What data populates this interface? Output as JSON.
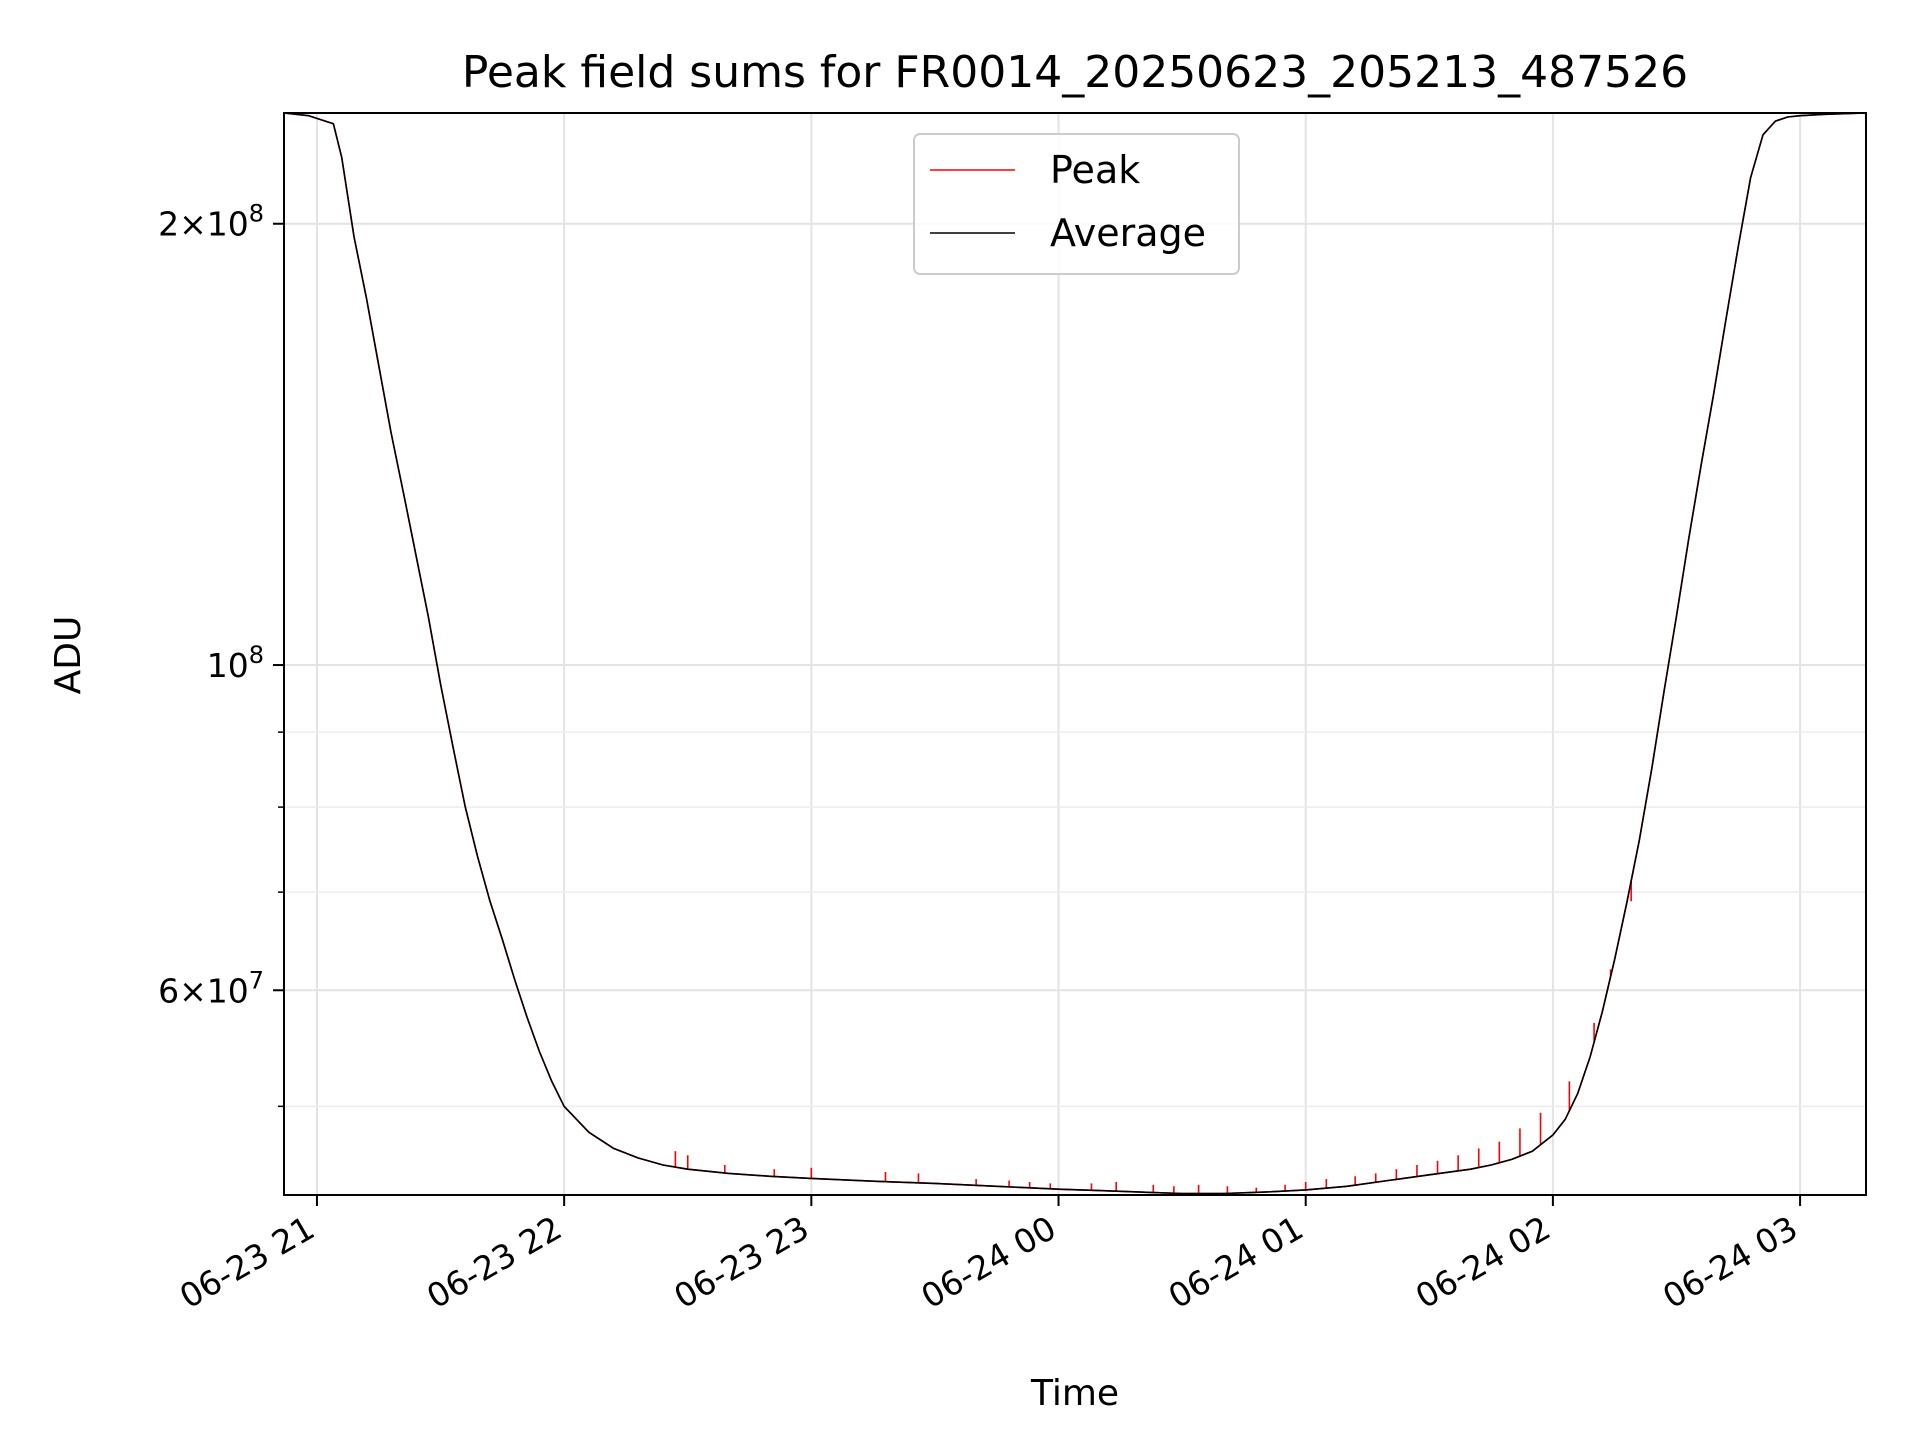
{
  "chart_data": {
    "type": "line",
    "title": "Peak field sums for FR0014_20250623_205213_487526",
    "xlabel": "Time",
    "ylabel": "ADU",
    "yscale": "log",
    "xlim": [
      "2025-06-23T20:52",
      "2025-06-24T03:16"
    ],
    "ylim": [
      43500000,
      238000000
    ],
    "grid": true,
    "legend": {
      "position": "upper-center",
      "entries": [
        "Peak",
        "Average"
      ]
    },
    "x_ticks": [
      {
        "value": "2025-06-23T21:00",
        "label": "06-23 21"
      },
      {
        "value": "2025-06-23T22:00",
        "label": "06-23 22"
      },
      {
        "value": "2025-06-23T23:00",
        "label": "06-23 23"
      },
      {
        "value": "2025-06-24T00:00",
        "label": "06-24 00"
      },
      {
        "value": "2025-06-24T01:00",
        "label": "06-24 01"
      },
      {
        "value": "2025-06-24T02:00",
        "label": "06-24 02"
      },
      {
        "value": "2025-06-24T03:00",
        "label": "06-24 03"
      }
    ],
    "y_major_ticks": [
      {
        "value": 60000000,
        "coef": "6",
        "exp": "7"
      },
      {
        "value": 100000000,
        "coef": "",
        "exp": "8"
      },
      {
        "value": 200000000,
        "coef": "2",
        "exp": "8"
      }
    ],
    "y_minor_ticks": [
      50000000,
      70000000,
      80000000,
      90000000
    ],
    "series": [
      {
        "name": "Average",
        "color": "#000000",
        "x": [
          "2025-06-23T20:52",
          "2025-06-23T20:58",
          "2025-06-23T21:04",
          "2025-06-23T21:06",
          "2025-06-23T21:09",
          "2025-06-23T21:12",
          "2025-06-23T21:15",
          "2025-06-23T21:18",
          "2025-06-23T21:21",
          "2025-06-23T21:24",
          "2025-06-23T21:27",
          "2025-06-23T21:30",
          "2025-06-23T21:33",
          "2025-06-23T21:36",
          "2025-06-23T21:39",
          "2025-06-23T21:42",
          "2025-06-23T21:45",
          "2025-06-23T21:48",
          "2025-06-23T21:51",
          "2025-06-23T21:54",
          "2025-06-23T21:57",
          "2025-06-23T22:00",
          "2025-06-23T22:06",
          "2025-06-23T22:12",
          "2025-06-23T22:18",
          "2025-06-23T22:24",
          "2025-06-23T22:30",
          "2025-06-23T22:40",
          "2025-06-23T22:50",
          "2025-06-23T23:00",
          "2025-06-23T23:15",
          "2025-06-23T23:30",
          "2025-06-23T23:45",
          "2025-06-24T00:00",
          "2025-06-24T00:10",
          "2025-06-24T00:20",
          "2025-06-24T00:30",
          "2025-06-24T00:40",
          "2025-06-24T00:50",
          "2025-06-24T01:00",
          "2025-06-24T01:10",
          "2025-06-24T01:20",
          "2025-06-24T01:30",
          "2025-06-24T01:40",
          "2025-06-24T01:45",
          "2025-06-24T01:50",
          "2025-06-24T01:55",
          "2025-06-24T02:00",
          "2025-06-24T02:03",
          "2025-06-24T02:06",
          "2025-06-24T02:09",
          "2025-06-24T02:12",
          "2025-06-24T02:15",
          "2025-06-24T02:18",
          "2025-06-24T02:21",
          "2025-06-24T02:24",
          "2025-06-24T02:27",
          "2025-06-24T02:30",
          "2025-06-24T02:33",
          "2025-06-24T02:36",
          "2025-06-24T02:39",
          "2025-06-24T02:42",
          "2025-06-24T02:45",
          "2025-06-24T02:48",
          "2025-06-24T02:51",
          "2025-06-24T02:54",
          "2025-06-24T02:57",
          "2025-06-24T03:00",
          "2025-06-24T03:06",
          "2025-06-24T03:16"
        ],
        "y": [
          238000000,
          237000000,
          234000000,
          222000000,
          196000000,
          178000000,
          160000000,
          144000000,
          131000000,
          119000000,
          108000000,
          97000000,
          88000000,
          80000000,
          74000000,
          69000000,
          65000000,
          61000000,
          57500000,
          54500000,
          52000000,
          50000000,
          48000000,
          46800000,
          46100000,
          45600000,
          45300000,
          45000000,
          44800000,
          44650000,
          44450000,
          44300000,
          44100000,
          43900000,
          43800000,
          43700000,
          43600000,
          43600000,
          43700000,
          43850000,
          44100000,
          44500000,
          44900000,
          45300000,
          45600000,
          46000000,
          46600000,
          47800000,
          49000000,
          51000000,
          54000000,
          58000000,
          63000000,
          69000000,
          76000000,
          85000000,
          96000000,
          108000000,
          122000000,
          137000000,
          153000000,
          172000000,
          193000000,
          215000000,
          230000000,
          235000000,
          236500000,
          237000000,
          237500000,
          238000000
        ]
      },
      {
        "name": "Peak",
        "color": "#ff0000",
        "spikes": [
          {
            "x": "2025-06-23T22:27",
            "y": 46600000
          },
          {
            "x": "2025-06-23T22:30",
            "y": 46300000
          },
          {
            "x": "2025-06-23T22:39",
            "y": 45600000
          },
          {
            "x": "2025-06-23T22:51",
            "y": 45300000
          },
          {
            "x": "2025-06-23T23:00",
            "y": 45400000
          },
          {
            "x": "2025-06-23T23:18",
            "y": 45100000
          },
          {
            "x": "2025-06-23T23:26",
            "y": 45000000
          },
          {
            "x": "2025-06-23T23:40",
            "y": 44600000
          },
          {
            "x": "2025-06-23T23:48",
            "y": 44500000
          },
          {
            "x": "2025-06-23T23:53",
            "y": 44400000
          },
          {
            "x": "2025-06-23T23:58",
            "y": 44300000
          },
          {
            "x": "2025-06-24T00:08",
            "y": 44300000
          },
          {
            "x": "2025-06-24T00:14",
            "y": 44400000
          },
          {
            "x": "2025-06-24T00:23",
            "y": 44200000
          },
          {
            "x": "2025-06-24T00:28",
            "y": 44100000
          },
          {
            "x": "2025-06-24T00:34",
            "y": 44200000
          },
          {
            "x": "2025-06-24T00:41",
            "y": 44100000
          },
          {
            "x": "2025-06-24T00:48",
            "y": 44000000
          },
          {
            "x": "2025-06-24T00:55",
            "y": 44200000
          },
          {
            "x": "2025-06-24T01:00",
            "y": 44400000
          },
          {
            "x": "2025-06-24T01:05",
            "y": 44600000
          },
          {
            "x": "2025-06-24T01:12",
            "y": 44800000
          },
          {
            "x": "2025-06-24T01:17",
            "y": 45000000
          },
          {
            "x": "2025-06-24T01:22",
            "y": 45300000
          },
          {
            "x": "2025-06-24T01:27",
            "y": 45600000
          },
          {
            "x": "2025-06-24T01:32",
            "y": 45900000
          },
          {
            "x": "2025-06-24T01:37",
            "y": 46300000
          },
          {
            "x": "2025-06-24T01:42",
            "y": 46800000
          },
          {
            "x": "2025-06-24T01:47",
            "y": 47300000
          },
          {
            "x": "2025-06-24T01:52",
            "y": 48300000
          },
          {
            "x": "2025-06-24T01:57",
            "y": 49500000
          },
          {
            "x": "2025-06-24T02:04",
            "y": 52000000
          },
          {
            "x": "2025-06-24T02:10",
            "y": 57000000
          },
          {
            "x": "2025-06-24T02:14",
            "y": 62000000
          },
          {
            "x": "2025-06-24T02:19",
            "y": 69000000
          }
        ]
      }
    ]
  }
}
